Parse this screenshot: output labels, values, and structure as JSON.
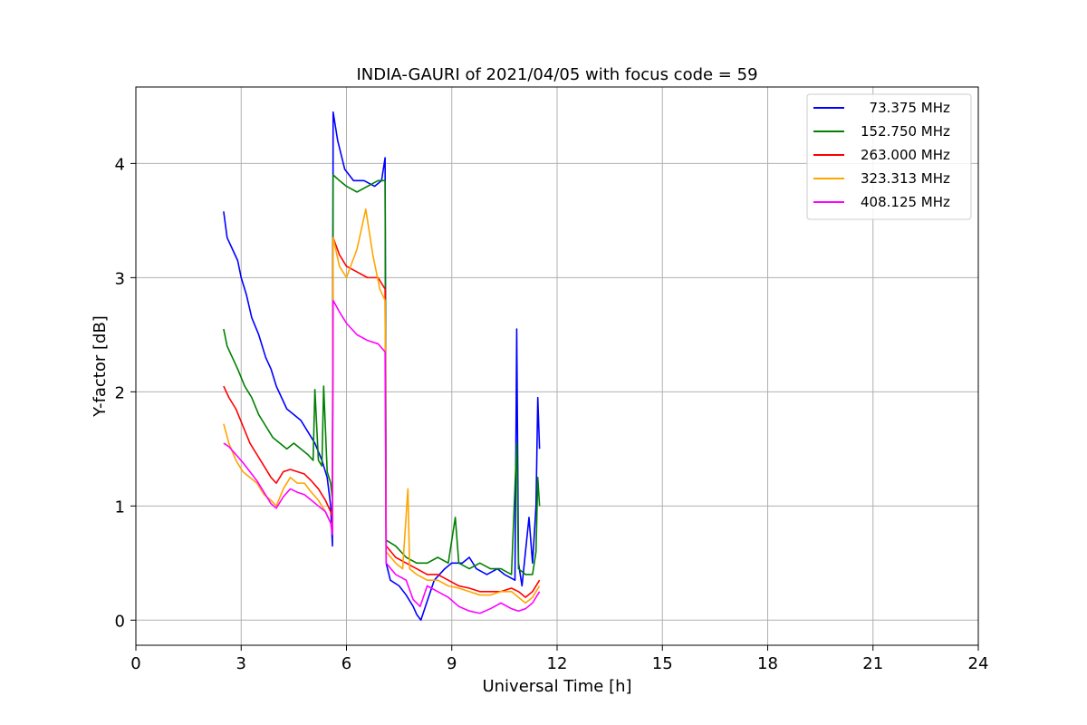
{
  "chart_data": {
    "type": "line",
    "title": "INDIA-GAURI of 2021/04/05 with focus code = 59",
    "xlabel": "Universal Time [h]",
    "ylabel": "Y-factor [dB]",
    "xlim": [
      0,
      24
    ],
    "ylim": [
      -0.22,
      4.67
    ],
    "xticks": [
      0,
      3,
      6,
      9,
      12,
      15,
      18,
      21,
      24
    ],
    "yticks": [
      0,
      1,
      2,
      3,
      4
    ],
    "grid": true,
    "legend_position": "upper right",
    "series": [
      {
        "name": "  73.375 MHz",
        "color": "#0000ff",
        "points": [
          [
            2.5,
            3.58
          ],
          [
            2.6,
            3.35
          ],
          [
            2.75,
            3.25
          ],
          [
            2.9,
            3.15
          ],
          [
            3.0,
            3.0
          ],
          [
            3.15,
            2.85
          ],
          [
            3.3,
            2.65
          ],
          [
            3.5,
            2.5
          ],
          [
            3.7,
            2.3
          ],
          [
            3.85,
            2.2
          ],
          [
            4.0,
            2.05
          ],
          [
            4.15,
            1.95
          ],
          [
            4.3,
            1.85
          ],
          [
            4.5,
            1.8
          ],
          [
            4.7,
            1.75
          ],
          [
            4.9,
            1.65
          ],
          [
            5.1,
            1.55
          ],
          [
            5.3,
            1.4
          ],
          [
            5.45,
            1.25
          ],
          [
            5.55,
            1.0
          ],
          [
            5.6,
            0.65
          ],
          [
            5.62,
            4.45
          ],
          [
            5.75,
            4.2
          ],
          [
            5.95,
            3.95
          ],
          [
            6.2,
            3.85
          ],
          [
            6.5,
            3.85
          ],
          [
            6.8,
            3.8
          ],
          [
            7.0,
            3.85
          ],
          [
            7.1,
            4.05
          ],
          [
            7.13,
            0.5
          ],
          [
            7.25,
            0.35
          ],
          [
            7.5,
            0.3
          ],
          [
            7.7,
            0.22
          ],
          [
            7.9,
            0.12
          ],
          [
            8.0,
            0.05
          ],
          [
            8.12,
            0.0
          ],
          [
            8.25,
            0.12
          ],
          [
            8.5,
            0.35
          ],
          [
            8.8,
            0.45
          ],
          [
            9.0,
            0.5
          ],
          [
            9.3,
            0.5
          ],
          [
            9.5,
            0.55
          ],
          [
            9.7,
            0.45
          ],
          [
            10.0,
            0.4
          ],
          [
            10.3,
            0.45
          ],
          [
            10.5,
            0.4
          ],
          [
            10.8,
            0.35
          ],
          [
            10.85,
            2.55
          ],
          [
            10.9,
            0.5
          ],
          [
            11.0,
            0.3
          ],
          [
            11.1,
            0.6
          ],
          [
            11.2,
            0.9
          ],
          [
            11.3,
            0.5
          ],
          [
            11.4,
            1.0
          ],
          [
            11.45,
            1.95
          ],
          [
            11.5,
            1.5
          ]
        ]
      },
      {
        "name": "152.750 MHz",
        "color": "#008000",
        "points": [
          [
            2.5,
            2.55
          ],
          [
            2.6,
            2.4
          ],
          [
            2.75,
            2.3
          ],
          [
            2.9,
            2.2
          ],
          [
            3.1,
            2.05
          ],
          [
            3.3,
            1.95
          ],
          [
            3.5,
            1.8
          ],
          [
            3.7,
            1.7
          ],
          [
            3.9,
            1.6
          ],
          [
            4.1,
            1.55
          ],
          [
            4.3,
            1.5
          ],
          [
            4.5,
            1.55
          ],
          [
            4.7,
            1.5
          ],
          [
            4.9,
            1.45
          ],
          [
            5.05,
            1.4
          ],
          [
            5.1,
            2.02
          ],
          [
            5.2,
            1.4
          ],
          [
            5.3,
            1.35
          ],
          [
            5.35,
            2.05
          ],
          [
            5.45,
            1.3
          ],
          [
            5.55,
            1.2
          ],
          [
            5.6,
            1.05
          ],
          [
            5.62,
            3.9
          ],
          [
            5.8,
            3.85
          ],
          [
            6.0,
            3.8
          ],
          [
            6.3,
            3.75
          ],
          [
            6.6,
            3.8
          ],
          [
            6.9,
            3.85
          ],
          [
            7.1,
            3.85
          ],
          [
            7.13,
            0.7
          ],
          [
            7.4,
            0.65
          ],
          [
            7.7,
            0.55
          ],
          [
            8.0,
            0.5
          ],
          [
            8.3,
            0.5
          ],
          [
            8.6,
            0.55
          ],
          [
            8.9,
            0.5
          ],
          [
            9.1,
            0.9
          ],
          [
            9.2,
            0.5
          ],
          [
            9.5,
            0.45
          ],
          [
            9.8,
            0.5
          ],
          [
            10.1,
            0.45
          ],
          [
            10.4,
            0.45
          ],
          [
            10.7,
            0.4
          ],
          [
            10.85,
            1.55
          ],
          [
            10.9,
            0.45
          ],
          [
            11.1,
            0.4
          ],
          [
            11.3,
            0.4
          ],
          [
            11.4,
            0.6
          ],
          [
            11.45,
            1.25
          ],
          [
            11.5,
            1.0
          ]
        ]
      },
      {
        "name": "263.000 MHz",
        "color": "#ff0000",
        "points": [
          [
            2.5,
            2.05
          ],
          [
            2.65,
            1.95
          ],
          [
            2.85,
            1.85
          ],
          [
            3.05,
            1.7
          ],
          [
            3.25,
            1.55
          ],
          [
            3.45,
            1.45
          ],
          [
            3.65,
            1.35
          ],
          [
            3.85,
            1.25
          ],
          [
            4.0,
            1.2
          ],
          [
            4.2,
            1.3
          ],
          [
            4.4,
            1.32
          ],
          [
            4.6,
            1.3
          ],
          [
            4.8,
            1.28
          ],
          [
            5.0,
            1.22
          ],
          [
            5.2,
            1.15
          ],
          [
            5.4,
            1.05
          ],
          [
            5.55,
            0.95
          ],
          [
            5.6,
            0.9
          ],
          [
            5.62,
            3.35
          ],
          [
            5.8,
            3.2
          ],
          [
            6.0,
            3.1
          ],
          [
            6.3,
            3.05
          ],
          [
            6.6,
            3.0
          ],
          [
            6.9,
            3.0
          ],
          [
            7.1,
            2.9
          ],
          [
            7.13,
            0.65
          ],
          [
            7.4,
            0.55
          ],
          [
            7.7,
            0.5
          ],
          [
            8.0,
            0.45
          ],
          [
            8.3,
            0.4
          ],
          [
            8.6,
            0.4
          ],
          [
            8.9,
            0.35
          ],
          [
            9.2,
            0.3
          ],
          [
            9.5,
            0.28
          ],
          [
            9.8,
            0.25
          ],
          [
            10.1,
            0.25
          ],
          [
            10.4,
            0.25
          ],
          [
            10.7,
            0.28
          ],
          [
            10.9,
            0.25
          ],
          [
            11.1,
            0.2
          ],
          [
            11.3,
            0.25
          ],
          [
            11.5,
            0.35
          ]
        ]
      },
      {
        "name": "323.313 MHz",
        "color": "#ffa500",
        "points": [
          [
            2.5,
            1.72
          ],
          [
            2.65,
            1.55
          ],
          [
            2.85,
            1.4
          ],
          [
            3.05,
            1.3
          ],
          [
            3.25,
            1.25
          ],
          [
            3.45,
            1.2
          ],
          [
            3.65,
            1.1
          ],
          [
            3.85,
            1.05
          ],
          [
            4.0,
            1.0
          ],
          [
            4.2,
            1.15
          ],
          [
            4.4,
            1.25
          ],
          [
            4.6,
            1.2
          ],
          [
            4.8,
            1.2
          ],
          [
            5.0,
            1.12
          ],
          [
            5.2,
            1.05
          ],
          [
            5.4,
            0.95
          ],
          [
            5.55,
            0.85
          ],
          [
            5.6,
            0.8
          ],
          [
            5.62,
            3.35
          ],
          [
            5.8,
            3.1
          ],
          [
            6.0,
            3.0
          ],
          [
            6.3,
            3.25
          ],
          [
            6.55,
            3.6
          ],
          [
            6.75,
            3.2
          ],
          [
            6.95,
            2.9
          ],
          [
            7.1,
            2.8
          ],
          [
            7.13,
            0.6
          ],
          [
            7.4,
            0.5
          ],
          [
            7.6,
            0.45
          ],
          [
            7.75,
            1.15
          ],
          [
            7.8,
            0.45
          ],
          [
            8.0,
            0.4
          ],
          [
            8.3,
            0.35
          ],
          [
            8.6,
            0.35
          ],
          [
            8.9,
            0.3
          ],
          [
            9.2,
            0.28
          ],
          [
            9.5,
            0.25
          ],
          [
            9.8,
            0.22
          ],
          [
            10.1,
            0.22
          ],
          [
            10.4,
            0.25
          ],
          [
            10.7,
            0.25
          ],
          [
            10.9,
            0.2
          ],
          [
            11.1,
            0.15
          ],
          [
            11.3,
            0.2
          ],
          [
            11.5,
            0.3
          ]
        ]
      },
      {
        "name": "408.125 MHz",
        "color": "#ff00ff",
        "points": [
          [
            2.5,
            1.55
          ],
          [
            2.65,
            1.52
          ],
          [
            2.85,
            1.45
          ],
          [
            3.05,
            1.38
          ],
          [
            3.25,
            1.3
          ],
          [
            3.45,
            1.22
          ],
          [
            3.65,
            1.12
          ],
          [
            3.85,
            1.02
          ],
          [
            4.0,
            0.98
          ],
          [
            4.2,
            1.08
          ],
          [
            4.4,
            1.15
          ],
          [
            4.6,
            1.12
          ],
          [
            4.8,
            1.1
          ],
          [
            5.0,
            1.05
          ],
          [
            5.2,
            1.0
          ],
          [
            5.4,
            0.95
          ],
          [
            5.55,
            0.85
          ],
          [
            5.6,
            0.75
          ],
          [
            5.62,
            2.8
          ],
          [
            5.8,
            2.7
          ],
          [
            6.0,
            2.6
          ],
          [
            6.3,
            2.5
          ],
          [
            6.6,
            2.45
          ],
          [
            6.9,
            2.42
          ],
          [
            7.1,
            2.35
          ],
          [
            7.13,
            0.5
          ],
          [
            7.4,
            0.4
          ],
          [
            7.7,
            0.35
          ],
          [
            7.9,
            0.18
          ],
          [
            8.1,
            0.12
          ],
          [
            8.3,
            0.3
          ],
          [
            8.6,
            0.25
          ],
          [
            8.9,
            0.2
          ],
          [
            9.2,
            0.12
          ],
          [
            9.5,
            0.08
          ],
          [
            9.8,
            0.06
          ],
          [
            10.1,
            0.1
          ],
          [
            10.4,
            0.15
          ],
          [
            10.7,
            0.1
          ],
          [
            10.9,
            0.08
          ],
          [
            11.1,
            0.1
          ],
          [
            11.3,
            0.15
          ],
          [
            11.5,
            0.25
          ]
        ]
      }
    ]
  }
}
